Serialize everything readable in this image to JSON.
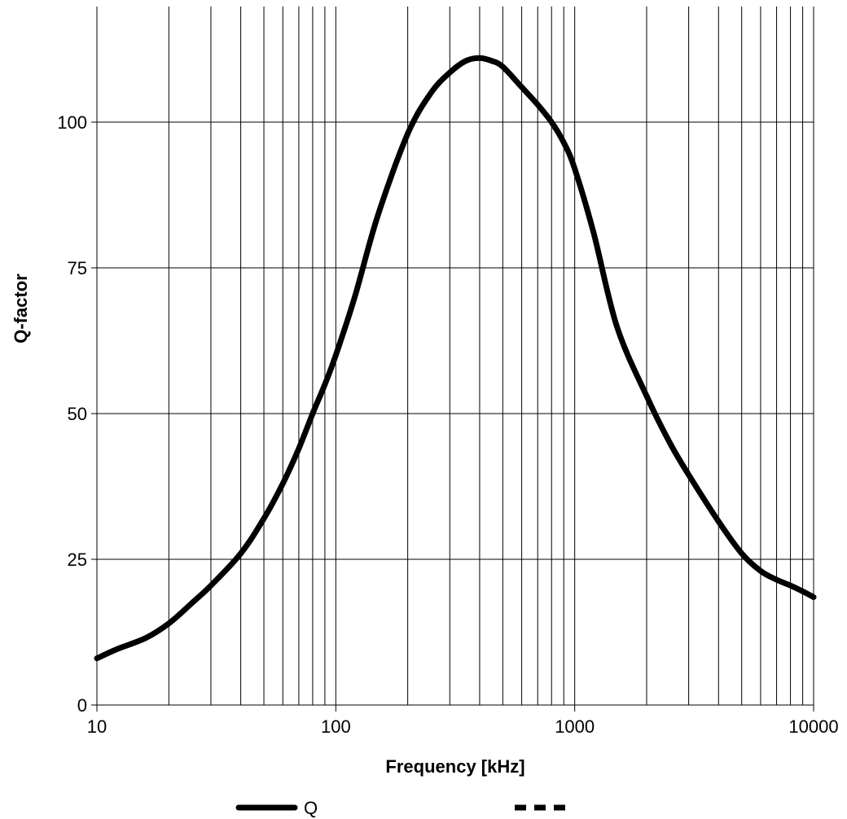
{
  "chart_data": {
    "type": "line",
    "title": "",
    "xlabel": "Frequency [kHz]",
    "ylabel": "Q-factor",
    "x_scale": "log",
    "xlim": [
      10,
      10000
    ],
    "ylim": [
      0,
      120
    ],
    "x_ticks": [
      10,
      100,
      1000,
      10000
    ],
    "x_tick_labels": [
      "10",
      "100",
      "1000",
      "10000"
    ],
    "y_ticks": [
      0,
      25,
      50,
      75,
      100
    ],
    "y_tick_labels": [
      "0",
      "25",
      "50",
      "75",
      "100"
    ],
    "grid": true,
    "line_color": "#000000",
    "legend_position": "bottom",
    "series": [
      {
        "name": "Q",
        "style": "solid",
        "x": [
          10,
          12,
          16,
          20,
          25,
          30,
          40,
          50,
          60,
          70,
          80,
          90,
          100,
          120,
          150,
          200,
          250,
          300,
          350,
          400,
          450,
          500,
          600,
          700,
          800,
          900,
          1000,
          1200,
          1500,
          2000,
          2500,
          3000,
          4000,
          5000,
          6000,
          7000,
          8000,
          9000,
          10000
        ],
        "y": [
          8,
          9.5,
          11.5,
          14,
          17.5,
          20.5,
          26,
          32,
          38,
          44,
          50,
          55,
          60,
          70,
          84,
          98,
          105,
          108.5,
          110.5,
          111,
          110.5,
          109.5,
          106,
          103,
          100,
          96.5,
          92,
          81,
          65,
          53,
          45,
          39.5,
          31.5,
          26,
          23,
          21.5,
          20.5,
          19.5,
          18.5
        ]
      },
      {
        "name": "",
        "style": "dashed",
        "x": [],
        "y": []
      }
    ]
  }
}
